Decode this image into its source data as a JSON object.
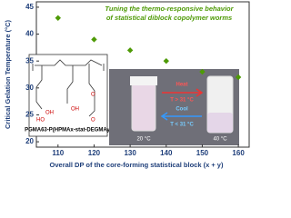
{
  "chart_data": {
    "type": "scatter",
    "title_lines": [
      "Tuning the thermo-responsive behavior",
      "of statistical diblock copolymer worms"
    ],
    "y_label": "Critical Gelation Temperature (°C)",
    "x_label": "Overall DP of the core-forming statistical block (x + y)",
    "x": [
      110,
      120,
      130,
      140,
      150,
      160
    ],
    "values": [
      43,
      39,
      37,
      35,
      33,
      32
    ],
    "color": "#4e9a06",
    "xlim": [
      104,
      163
    ],
    "xticks": [
      110,
      120,
      130,
      140,
      150,
      160
    ],
    "ylim": [
      19,
      46
    ],
    "yticks": [
      20,
      25,
      30,
      35,
      40,
      45
    ],
    "inset": {
      "polymer": "PGMA63-P(HPMAx-stat-DEGMAy)",
      "structure_labels": [
        "OH",
        "HO",
        "OH",
        "O",
        "O"
      ],
      "heat": "Heat",
      "heat_cond": "T > 31 °C",
      "cool": "Cool",
      "cool_cond": "T < 31 °C",
      "cold_temp": "20 °C",
      "hot_temp": "40 °C"
    }
  }
}
